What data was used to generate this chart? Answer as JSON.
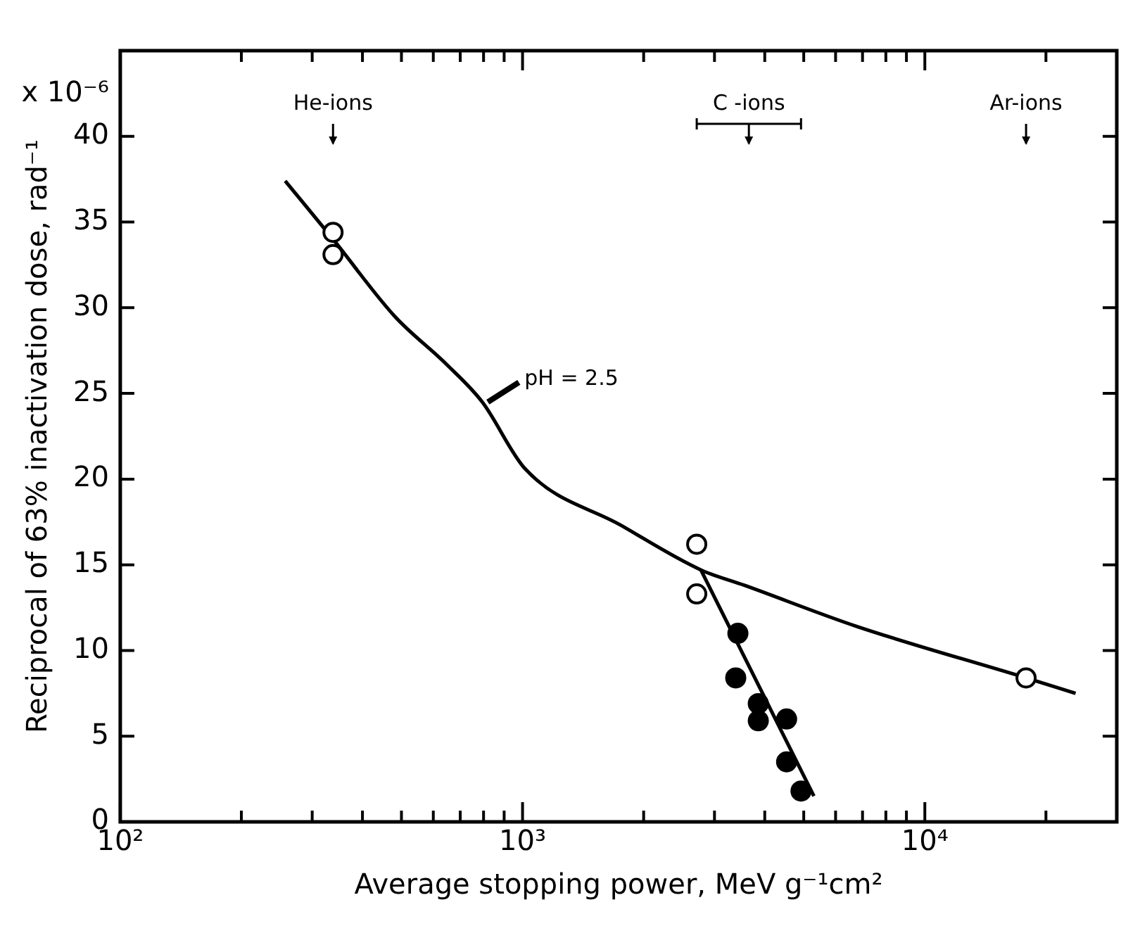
{
  "chart_data": {
    "type": "scatter",
    "xlabel": "Average stopping power, MeV g⁻¹cm²",
    "ylabel": "Reciprocal of 63% inactivation dose, rad⁻¹",
    "log": "x",
    "grid": false,
    "legend": false,
    "xlim": [
      100,
      30000
    ],
    "ylim": [
      0,
      45
    ],
    "xticks": [
      {
        "value": 100,
        "label": "10²"
      },
      {
        "value": 200,
        "label": null
      },
      {
        "value": 300,
        "label": null
      },
      {
        "value": 400,
        "label": null
      },
      {
        "value": 500,
        "label": null
      },
      {
        "value": 600,
        "label": null
      },
      {
        "value": 700,
        "label": null
      },
      {
        "value": 800,
        "label": null
      },
      {
        "value": 900,
        "label": null
      },
      {
        "value": 1000,
        "label": "10³"
      },
      {
        "value": 2000,
        "label": null
      },
      {
        "value": 3000,
        "label": null
      },
      {
        "value": 4000,
        "label": null
      },
      {
        "value": 5000,
        "label": null
      },
      {
        "value": 6000,
        "label": null
      },
      {
        "value": 7000,
        "label": null
      },
      {
        "value": 8000,
        "label": null
      },
      {
        "value": 9000,
        "label": null
      },
      {
        "value": 10000,
        "label": "10⁴"
      },
      {
        "value": 20000,
        "label": null
      },
      {
        "value": 30000,
        "label": null
      }
    ],
    "yticks": [
      0,
      5,
      10,
      15,
      20,
      25,
      30,
      35,
      40
    ],
    "series": [
      {
        "type": "line",
        "color": "#000000",
        "marker": "none",
        "x": [
          257,
          338,
          481,
          647,
          794,
          1015,
          1758,
          2775,
          3565,
          6780,
          17850,
          23700
        ],
        "values": [
          37.4,
          34.0,
          29.5,
          26.7,
          24.5,
          20.6,
          17.3,
          14.7,
          13.8,
          11.4,
          8.4,
          7.5
        ]
      },
      {
        "type": "line",
        "color": "#000000",
        "marker": "none",
        "x": [
          2775,
          5300
        ],
        "values": [
          14.7,
          1.5
        ]
      },
      {
        "color": "#ffffff",
        "marker": "circle",
        "x": [
          338,
          338,
          2710,
          2710,
          17850
        ],
        "values": [
          34.4,
          33.1,
          16.2,
          13.3,
          8.4
        ]
      },
      {
        "color": "#000000",
        "marker": "circle",
        "x": [
          3430,
          3388,
          3855,
          3855,
          4533,
          4533,
          4923
        ],
        "values": [
          11.0,
          8.4,
          6.9,
          5.9,
          6.0,
          3.5,
          1.8
        ]
      }
    ],
    "annotations": [
      "He-ions",
      "C -ions",
      "Ar-ions",
      {
        "text": "pH = 2.5",
        "x": 820,
        "y": 24.5
      },
      "x 10⁻⁶"
    ]
  }
}
